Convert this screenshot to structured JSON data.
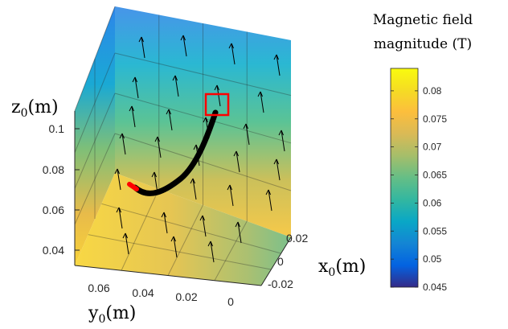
{
  "chart_data": {
    "type": "3d-quiver",
    "colorbar_title": [
      "Magnetic field",
      "magnitude (T)"
    ],
    "xlabel": {
      "base": "x",
      "sub": "0",
      "unit": "(m)"
    },
    "ylabel": {
      "base": "y",
      "sub": "0",
      "unit": "(m)"
    },
    "zlabel": {
      "base": "z",
      "sub": "0",
      "unit": "(m)"
    },
    "x_ticks": [
      "0.02",
      "0",
      "-0.02"
    ],
    "y_ticks": [
      "0.06",
      "0.04",
      "0.02",
      "0"
    ],
    "z_ticks": [
      "0.1",
      "0.08",
      "0.06",
      "0.04"
    ],
    "x_tick_values": [
      0.02,
      0,
      -0.02
    ],
    "y_tick_values": [
      0.06,
      0.04,
      0.02,
      0
    ],
    "z_tick_values": [
      0.1,
      0.08,
      0.06,
      0.04
    ],
    "colorbar": {
      "colormap": "parula",
      "range": [
        0.045,
        0.084
      ],
      "ticks": [
        "0.08",
        "0.075",
        "0.07",
        "0.065",
        "0.06",
        "0.055",
        "0.05",
        "0.045"
      ],
      "tick_values": [
        0.08,
        0.075,
        0.07,
        0.065,
        0.06,
        0.055,
        0.05,
        0.045
      ]
    },
    "trajectory": {
      "color": "#000000",
      "start_color": "#ff0000",
      "target_box_color": "#ff0000"
    },
    "arrow_color": "#000000"
  }
}
